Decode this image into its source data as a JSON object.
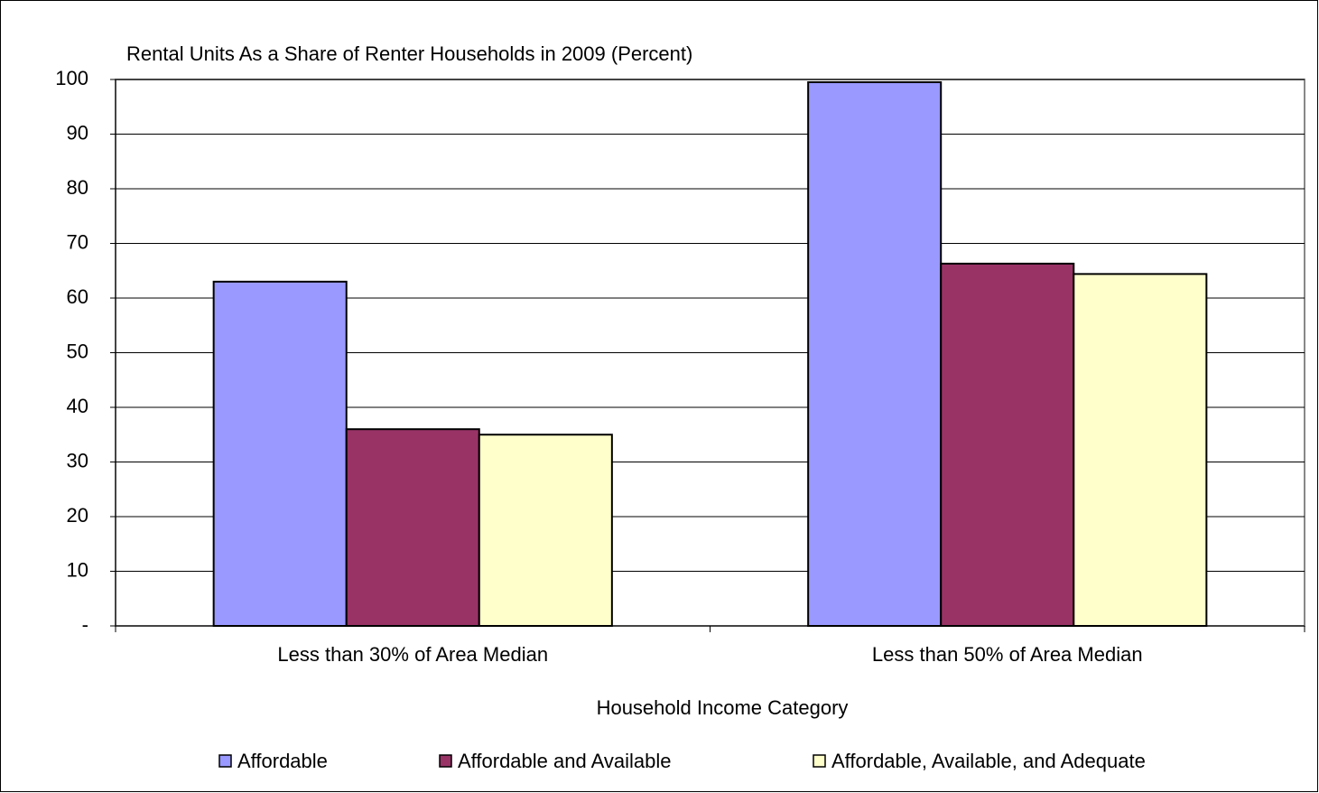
{
  "chart_data": {
    "type": "bar",
    "title": "Rental Units As a Share of Renter Households in 2009 (Percent)",
    "x_label": "Household Income Category",
    "categories": [
      "Less than 30% of Area Median",
      "Less than 50% of Area Median"
    ],
    "series": [
      {
        "name": "Affordable",
        "color": "#9999ff",
        "values": [
          63,
          99.5
        ]
      },
      {
        "name": "Affordable and Available",
        "color": "#993366",
        "values": [
          36,
          66.3
        ]
      },
      {
        "name": "Affordable, Available, and Adequate",
        "color": "#ffffcc",
        "values": [
          35,
          64.4
        ]
      }
    ],
    "ylim": [
      0,
      100
    ],
    "yticks": [
      {
        "value": 0,
        "label": "-"
      },
      10,
      20,
      30,
      40,
      50,
      60,
      70,
      80,
      90,
      100
    ],
    "grid": true,
    "legend": "bottom"
  }
}
